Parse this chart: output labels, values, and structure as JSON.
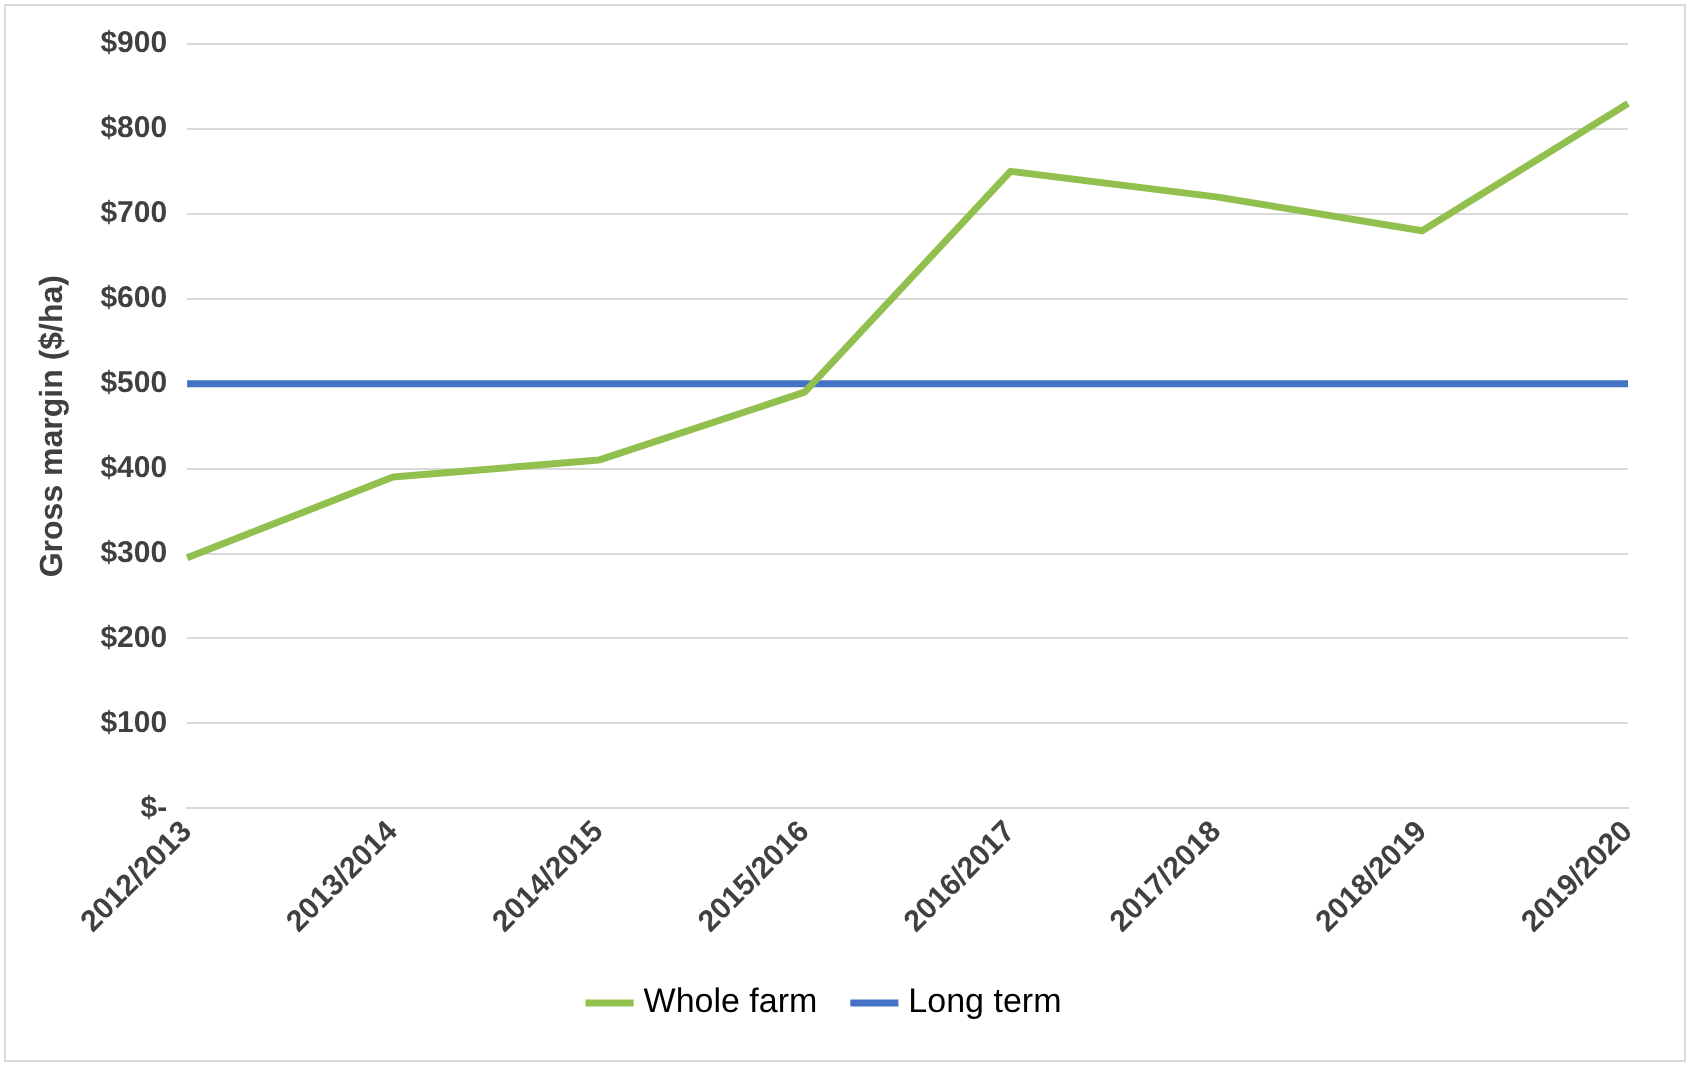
{
  "chart_data": {
    "type": "line",
    "ylabel": "Gross margin ($/ha)",
    "categories": [
      "2012/2013",
      "2013/2014",
      "2014/2015",
      "2015/2016",
      "2016/2017",
      "2017/2018",
      "2018/2019",
      "2019/2020"
    ],
    "series": [
      {
        "name": "Whole farm",
        "color": "#92c04e",
        "values": [
          295,
          390,
          410,
          490,
          750,
          720,
          680,
          830
        ]
      },
      {
        "name": "Long term",
        "color": "#4472c4",
        "values": [
          500,
          500,
          500,
          500,
          500,
          500,
          500,
          500
        ]
      }
    ],
    "ylim": [
      0,
      900
    ],
    "yticks": [
      {
        "value": 0,
        "label": "$-"
      },
      {
        "value": 100,
        "label": "$100"
      },
      {
        "value": 200,
        "label": "$200"
      },
      {
        "value": 300,
        "label": "$300"
      },
      {
        "value": 400,
        "label": "$400"
      },
      {
        "value": 500,
        "label": "$500"
      },
      {
        "value": 600,
        "label": "$600"
      },
      {
        "value": 700,
        "label": "$700"
      },
      {
        "value": 800,
        "label": "$800"
      },
      {
        "value": 900,
        "label": "$900"
      }
    ],
    "grid": "y",
    "legend": "bottom",
    "marker": "none",
    "line_style": "solid"
  }
}
